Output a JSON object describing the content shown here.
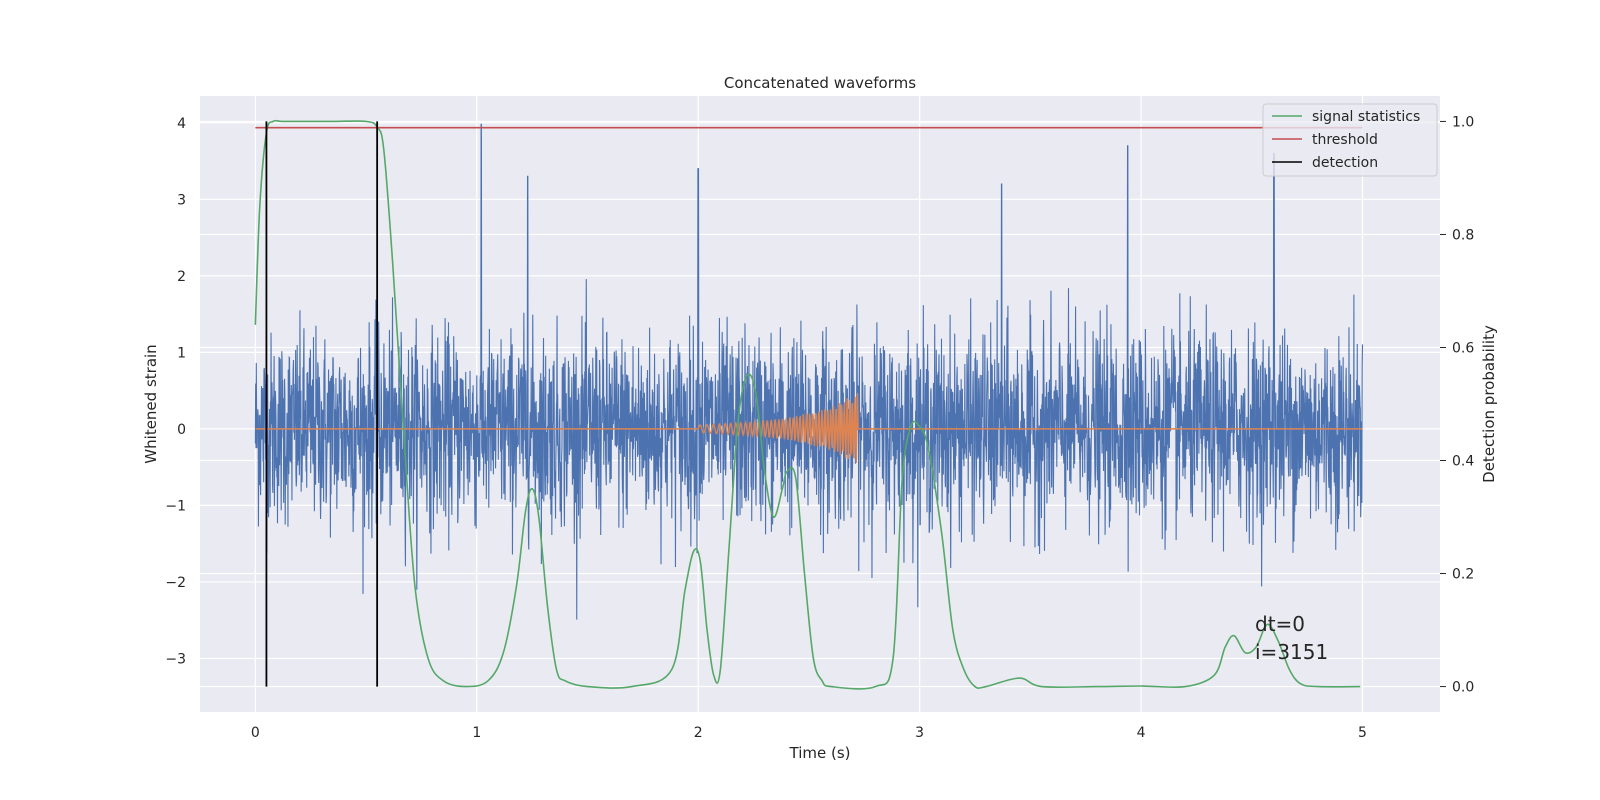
{
  "chart_data": {
    "type": "line",
    "title": "Concatenated waveforms",
    "xlabel": "Time (s)",
    "ylabel": "Whitened strain",
    "y2label": "Detection probability",
    "xlim": [
      -0.25,
      5.35
    ],
    "ylim": [
      -3.7,
      4.35
    ],
    "y2lim": [
      -0.045,
      1.045
    ],
    "xticks": [
      0,
      1,
      2,
      3,
      4,
      5
    ],
    "yticks": [
      -3,
      -2,
      -1,
      0,
      1,
      2,
      3,
      4
    ],
    "yticklabels": [
      "−3",
      "−2",
      "−1",
      "0",
      "1",
      "2",
      "3",
      "4"
    ],
    "y2ticks": [
      0.0,
      0.2,
      0.4,
      0.6,
      0.8,
      1.0
    ],
    "y2ticklabels": [
      "0.0",
      "0.2",
      "0.4",
      "0.6",
      "0.8",
      "1.0"
    ],
    "grid": true,
    "legend_position": "top-right",
    "colors": {
      "strain": "#4c72b0",
      "template": "#dd8452",
      "signal_statistics": "#55a868",
      "threshold": "#c44e52",
      "detection": "#000000",
      "axes_bg": "#eaeaf2",
      "grid": "#ffffff"
    },
    "series": [
      {
        "key": "strain",
        "axis": "left",
        "x_range": [
          0,
          5
        ],
        "noise_envelope": 1.5,
        "peaks": [
          [
            1.02,
            3.98
          ],
          [
            4.6,
            3.6
          ],
          [
            3.94,
            3.7
          ],
          [
            1.23,
            3.3
          ],
          [
            2.0,
            3.4
          ],
          [
            3.37,
            3.2
          ]
        ]
      },
      {
        "key": "template",
        "axis": "left",
        "x": [
          0,
          2.0,
          2.2,
          2.4,
          2.6,
          2.72,
          2.73,
          5.0
        ],
        "amplitude": [
          0,
          0.05,
          0.08,
          0.14,
          0.28,
          0.48,
          0,
          0
        ]
      },
      {
        "name": "signal statistics",
        "axis": "right",
        "x": [
          0,
          0.02,
          0.05,
          0.08,
          0.12,
          0.2,
          0.35,
          0.5,
          0.55,
          0.58,
          0.62,
          0.67,
          0.72,
          0.78,
          0.85,
          0.95,
          1.05,
          1.12,
          1.18,
          1.22,
          1.25,
          1.28,
          1.32,
          1.36,
          1.4,
          1.5,
          1.7,
          1.88,
          1.94,
          1.98,
          2.01,
          2.04,
          2.07,
          2.1,
          2.14,
          2.18,
          2.22,
          2.26,
          2.3,
          2.34,
          2.38,
          2.4,
          2.44,
          2.48,
          2.52,
          2.56,
          2.6,
          2.8,
          2.88,
          2.92,
          2.96,
          3.0,
          3.04,
          3.1,
          3.15,
          3.2,
          3.25,
          3.3,
          3.45,
          3.55,
          3.8,
          4.0,
          4.2,
          4.33,
          4.38,
          4.42,
          4.47,
          4.52,
          4.57,
          4.62,
          4.67,
          4.72,
          4.8,
          4.99
        ],
        "values": [
          0.64,
          0.85,
          0.98,
          1.0,
          1.0,
          1.0,
          1.0,
          1.0,
          0.99,
          0.95,
          0.75,
          0.45,
          0.18,
          0.05,
          0.01,
          0.0,
          0.01,
          0.06,
          0.18,
          0.31,
          0.35,
          0.3,
          0.14,
          0.03,
          0.01,
          0.0,
          0.0,
          0.03,
          0.17,
          0.24,
          0.22,
          0.1,
          0.02,
          0.03,
          0.25,
          0.47,
          0.55,
          0.52,
          0.38,
          0.3,
          0.35,
          0.38,
          0.37,
          0.2,
          0.05,
          0.01,
          0.0,
          0.0,
          0.05,
          0.36,
          0.46,
          0.46,
          0.42,
          0.27,
          0.1,
          0.03,
          0.0,
          0.0,
          0.015,
          0.0,
          0.0,
          0.001,
          0.0,
          0.02,
          0.07,
          0.09,
          0.06,
          0.07,
          0.11,
          0.08,
          0.03,
          0.005,
          0.0,
          0.0
        ]
      },
      {
        "name": "threshold",
        "axis": "right",
        "x": [
          0,
          5
        ],
        "values": [
          0.989,
          0.989
        ]
      },
      {
        "name": "detection",
        "axis": "right",
        "x": [
          0.05,
          0.55
        ],
        "range": [
          0,
          1
        ]
      }
    ],
    "legend": [
      "signal statistics",
      "threshold",
      "detection"
    ],
    "annotations": [
      "dt=0",
      "i=3151"
    ]
  }
}
